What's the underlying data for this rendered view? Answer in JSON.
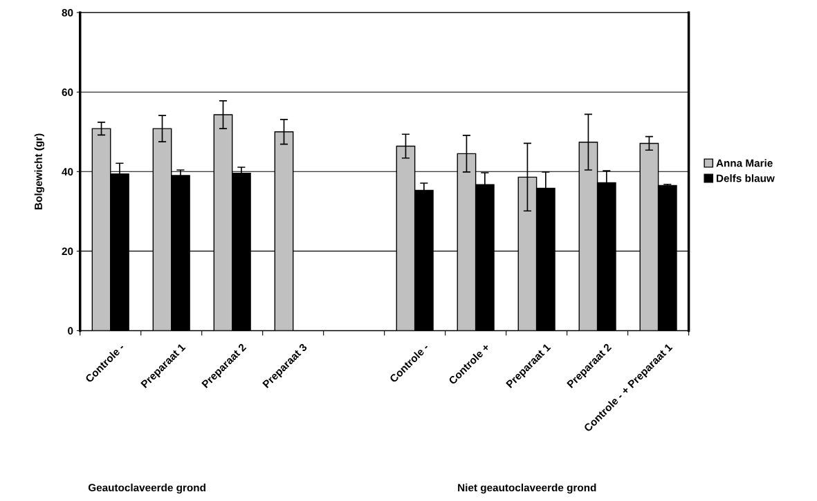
{
  "chart_data": {
    "type": "bar",
    "ylabel": "Bolgewicht (gr)",
    "categories": [
      "Controle -",
      "Preparaat 1",
      "Preparaat 2",
      "Preparaat 3",
      null,
      "Controle -",
      "Controle +",
      "Preparaat 1",
      "Preparaat 2",
      "Controle - + Preparaat 1"
    ],
    "series": [
      {
        "name": "Anna Marie",
        "color": "#c0c0c0",
        "values": [
          50.8,
          50.8,
          54.3,
          50.0,
          null,
          46.4,
          44.5,
          38.6,
          47.4,
          47.1
        ],
        "errors": [
          1.6,
          3.3,
          3.5,
          3.1,
          null,
          3.0,
          4.6,
          8.5,
          7.0,
          1.7
        ]
      },
      {
        "name": "Delfs blauw",
        "color": "#000000",
        "values": [
          39.4,
          39.0,
          39.6,
          null,
          null,
          35.3,
          36.7,
          35.8,
          37.2,
          36.5
        ],
        "errors": [
          2.7,
          1.4,
          1.5,
          null,
          null,
          1.8,
          3.0,
          4.1,
          3.0,
          0.3
        ]
      }
    ],
    "ylim": [
      0,
      80
    ],
    "yticks": [
      0,
      20,
      40,
      60,
      80
    ],
    "grid": "y",
    "legend": "right",
    "annotations": [
      "Geautoclaveerde grond",
      "Niet geautoclaveerde grond"
    ]
  }
}
